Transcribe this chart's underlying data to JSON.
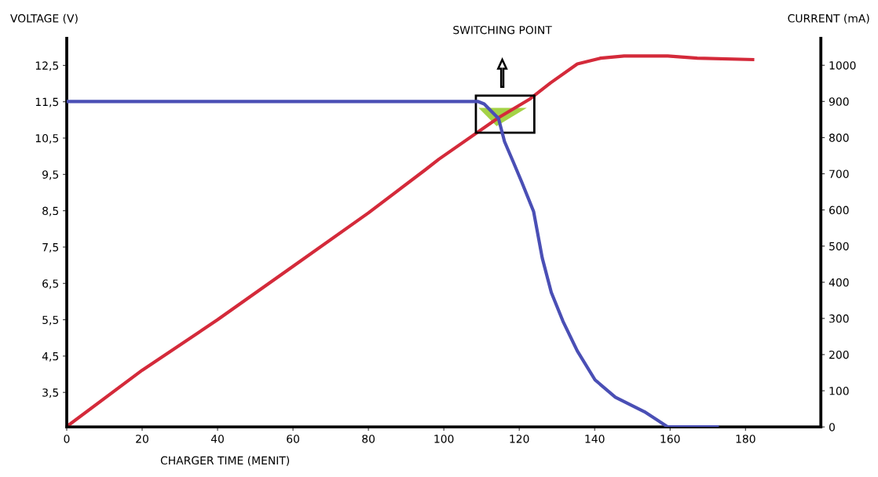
{
  "chart_data": {
    "type": "line",
    "xlabel": "CHARGER TIME (MENIT)",
    "ylabel": "VOLTAGE (V)",
    "y2label": "CURRENT (mA)",
    "xlim": [
      0,
      200
    ],
    "xticks": [
      0,
      20,
      40,
      60,
      80,
      100,
      120,
      140,
      160,
      180
    ],
    "ylim": [
      2.55,
      13.25
    ],
    "yticks": [
      {
        "value": 3.5,
        "label": "3,5"
      },
      {
        "value": 4.5,
        "label": "4,5"
      },
      {
        "value": 5.5,
        "label": "5,5"
      },
      {
        "value": 6.5,
        "label": "6,5"
      },
      {
        "value": 7.5,
        "label": "7,5"
      },
      {
        "value": 8.5,
        "label": "8,5"
      },
      {
        "value": 9.5,
        "label": "9,5"
      },
      {
        "value": 10.5,
        "label": "10,5"
      },
      {
        "value": 11.5,
        "label": "11,5"
      },
      {
        "value": 12.5,
        "label": "12,5"
      }
    ],
    "y2lim": [
      0,
      1075
    ],
    "y2ticks": [
      0,
      100,
      200,
      300,
      400,
      500,
      600,
      700,
      800,
      900,
      1000
    ],
    "marker": "none",
    "line_style": "solid",
    "annotations": [
      "SWITCHING POINT"
    ],
    "series": [
      {
        "color": "#d42a3a",
        "x": [
          0,
          20,
          40,
          60,
          80,
          95,
          98.7,
          114.5,
          122.9,
          128.3,
          135.4,
          141.6,
          147.8,
          159.4,
          167.2,
          181.9
        ],
        "values": [
          2.56,
          4.11,
          5.5,
          6.97,
          8.44,
          9.62,
          9.92,
          11.06,
          11.58,
          12.02,
          12.54,
          12.7,
          12.76,
          12.76,
          12.7,
          12.66
        ]
      },
      {
        "color": "#4a4fb5",
        "axis": "y2",
        "x": [
          0,
          109,
          110.7,
          114.5,
          116.1,
          118.4,
          120.7,
          123.8,
          126.1,
          128.5,
          131.6,
          135.4,
          140.1,
          145.5,
          153.2,
          159.4,
          172.5
        ],
        "values": [
          900,
          900,
          893,
          853,
          789,
          733,
          676,
          596,
          467,
          372,
          292,
          210,
          130,
          82,
          42,
          0,
          0
        ]
      }
    ]
  }
}
